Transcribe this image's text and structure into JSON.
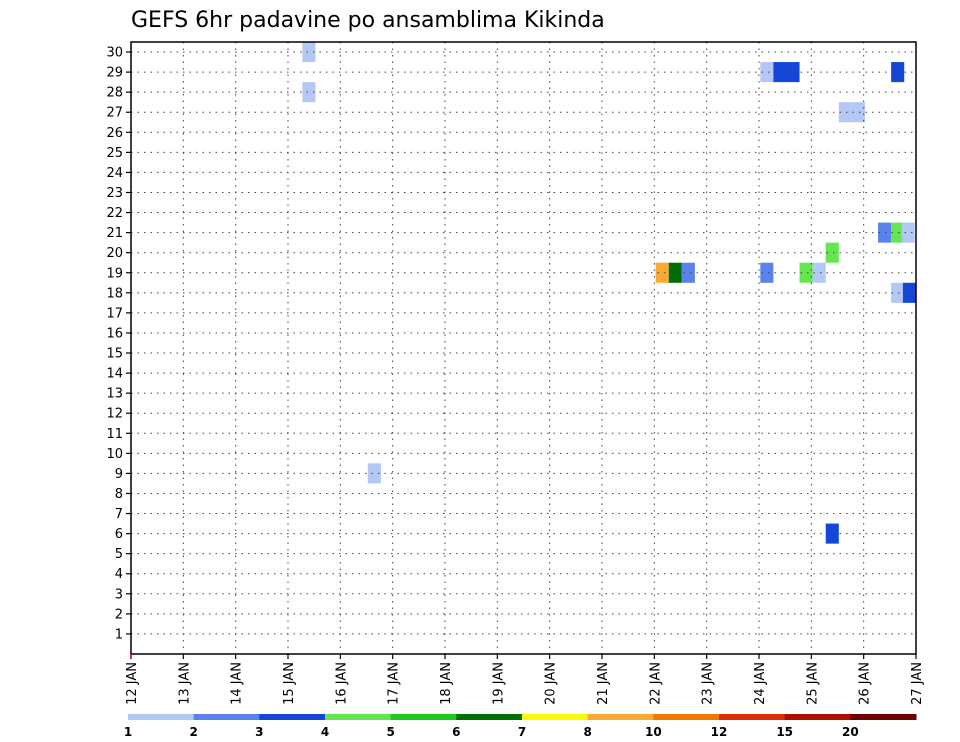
{
  "chart_data": {
    "type": "heatmap",
    "title": "GEFS 6hr padavine po ansamblima Kikinda",
    "xlabel": "",
    "ylabel": "",
    "x_tick_labels": [
      "12 JAN",
      "13 JAN",
      "14 JAN",
      "15 JAN",
      "16 JAN",
      "17 JAN",
      "18 JAN",
      "19 JAN",
      "20 JAN",
      "21 JAN",
      "22 JAN",
      "23 JAN",
      "24 JAN",
      "25 JAN",
      "26 JAN",
      "27 JAN"
    ],
    "x_range_days": [
      0,
      15
    ],
    "y_tick_labels": [
      "1",
      "2",
      "3",
      "4",
      "5",
      "6",
      "7",
      "8",
      "9",
      "10",
      "11",
      "12",
      "13",
      "14",
      "15",
      "16",
      "17",
      "18",
      "19",
      "20",
      "21",
      "22",
      "23",
      "24",
      "25",
      "26",
      "27",
      "28",
      "29",
      "30"
    ],
    "y_range": [
      0,
      30.5
    ],
    "grid": true,
    "colorbar": {
      "position": "bottom",
      "labels": [
        "1",
        "2",
        "3",
        "4",
        "5",
        "6",
        "7",
        "8",
        "10",
        "12",
        "15",
        "20"
      ],
      "colors": [
        "#b4c8f5",
        "#5a82eb",
        "#1446d7",
        "#64e650",
        "#1ec81e",
        "#006e00",
        "#fafa00",
        "#faaa32",
        "#f07800",
        "#dc2d00",
        "#aa0f00",
        "#6e0000"
      ]
    },
    "cells": [
      {
        "member": 30,
        "day": 3.4,
        "level": 0
      },
      {
        "member": 28,
        "day": 3.4,
        "level": 0
      },
      {
        "member": 9,
        "day": 4.65,
        "level": 0
      },
      {
        "member": 29,
        "day": 12.15,
        "level": 0
      },
      {
        "member": 29,
        "day": 12.4,
        "level": 2
      },
      {
        "member": 29,
        "day": 12.65,
        "level": 2
      },
      {
        "member": 29,
        "day": 14.65,
        "level": 2
      },
      {
        "member": 27,
        "day": 13.65,
        "level": 0
      },
      {
        "member": 27,
        "day": 13.9,
        "level": 0
      },
      {
        "member": 21,
        "day": 14.4,
        "level": 1
      },
      {
        "member": 21,
        "day": 14.65,
        "level": 3
      },
      {
        "member": 21,
        "day": 14.85,
        "level": 0
      },
      {
        "member": 20,
        "day": 13.4,
        "level": 3
      },
      {
        "member": 19,
        "day": 10.15,
        "level": 7
      },
      {
        "member": 19,
        "day": 10.4,
        "level": 5
      },
      {
        "member": 19,
        "day": 10.65,
        "level": 1
      },
      {
        "member": 19,
        "day": 12.15,
        "level": 1
      },
      {
        "member": 19,
        "day": 12.9,
        "level": 3
      },
      {
        "member": 19,
        "day": 13.15,
        "level": 0
      },
      {
        "member": 18,
        "day": 14.65,
        "level": 0
      },
      {
        "member": 18,
        "day": 14.88,
        "level": 2
      },
      {
        "member": 6,
        "day": 13.4,
        "level": 2
      }
    ]
  }
}
